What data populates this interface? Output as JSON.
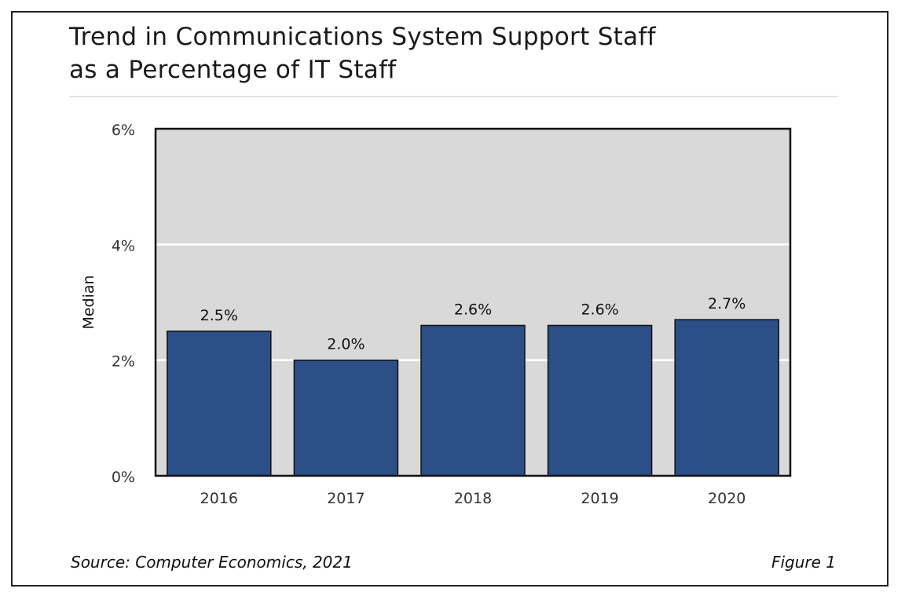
{
  "chart_data": {
    "type": "bar",
    "title": "Trend in Communications System Support Staff as a Percentage of IT Staff",
    "title_lines": [
      "Trend in Communications System Support Staff",
      "as a Percentage of IT Staff"
    ],
    "categories": [
      "2016",
      "2017",
      "2018",
      "2019",
      "2020"
    ],
    "values": [
      2.5,
      2.0,
      2.6,
      2.6,
      2.7
    ],
    "data_labels": [
      "2.5%",
      "2.0%",
      "2.6%",
      "2.6%",
      "2.7%"
    ],
    "xlabel": "",
    "ylabel": "Median",
    "ylim": [
      0,
      6
    ],
    "yticks": [
      0,
      2,
      4,
      6
    ],
    "ytick_labels": [
      "0%",
      "2%",
      "4%",
      "6%"
    ],
    "grid": true,
    "legend": "none",
    "colors": {
      "bar": "#2b4f86",
      "plot_bg": "#d9d9d9",
      "grid": "#ffffff"
    }
  },
  "footer": {
    "source": "Source: Computer Economics, 2021",
    "figure": "Figure 1"
  }
}
